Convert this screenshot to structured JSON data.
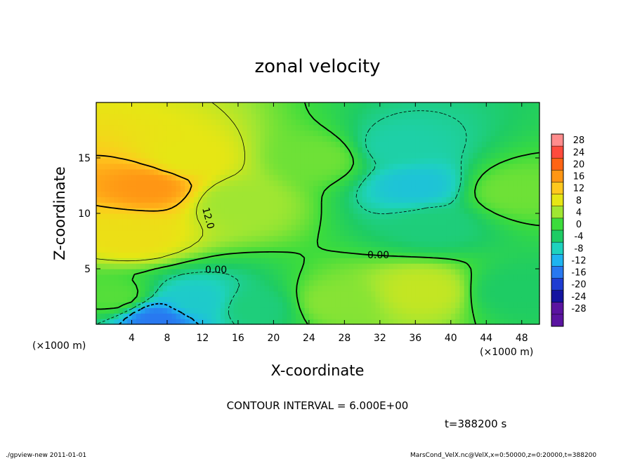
{
  "chart_data": {
    "type": "heatmap",
    "title": "zonal velocity",
    "xlabel": "X-coordinate",
    "ylabel": "Z-coordinate",
    "x_unit_left": "(×1000 m)",
    "x_unit_right": "(×1000 m)",
    "y_unit": "(×1000 m)",
    "xlim": [
      0,
      50
    ],
    "ylim": [
      0,
      20
    ],
    "x_ticks": [
      4,
      8,
      12,
      16,
      20,
      24,
      28,
      32,
      36,
      40,
      44,
      48
    ],
    "y_ticks": [
      5,
      10,
      15
    ],
    "colorbar_levels": [
      28,
      24,
      20,
      16,
      12,
      8,
      4,
      0,
      -4,
      -8,
      -12,
      -16,
      -20,
      -24,
      -28
    ],
    "colorbar_colors": [
      "#ff8c8c",
      "#ff4b3c",
      "#ff6414",
      "#ff9614",
      "#ffc81e",
      "#e6e614",
      "#a0e632",
      "#3cdc3c",
      "#1ecc64",
      "#1ed2be",
      "#1eb4f0",
      "#2878f0",
      "#1e3cd2",
      "#1414a0",
      "#5a14a0"
    ],
    "contour_interval": "CONTOUR INTERVAL = 6.000E+00",
    "contour_labels": [
      "12.0",
      "0.00",
      "0.00"
    ],
    "time_label": "t=388200 s",
    "features": [
      {
        "x": 6,
        "z": 12.5,
        "value": 16
      },
      {
        "x": 10,
        "z": 15,
        "value": 8
      },
      {
        "x": 4,
        "z": 8,
        "value": 9
      },
      {
        "x": 36,
        "z": 12.5,
        "value": -10
      },
      {
        "x": 34,
        "z": 16,
        "value": -7
      },
      {
        "x": 38,
        "z": 9,
        "value": -5
      },
      {
        "x": 7,
        "z": 0.5,
        "value": -16
      },
      {
        "x": 11,
        "z": 2,
        "value": -9
      },
      {
        "x": 18,
        "z": 1.5,
        "value": -5
      },
      {
        "x": 37,
        "z": 3,
        "value": 6
      },
      {
        "x": 27,
        "z": 2,
        "value": 3
      },
      {
        "x": 47,
        "z": 3,
        "value": -4
      },
      {
        "x": 25,
        "z": 15,
        "value": 2
      },
      {
        "x": 47,
        "z": 12,
        "value": 2
      },
      {
        "x": 2,
        "z": 2.5,
        "value": 1
      },
      {
        "x": 16,
        "z": 11,
        "value": 4
      }
    ]
  },
  "footer": {
    "left": "./gpview-new  2011-01-01",
    "right": "MarsCond_VelX.nc@VelX,x=0:50000,z=0:20000,t=388200"
  }
}
